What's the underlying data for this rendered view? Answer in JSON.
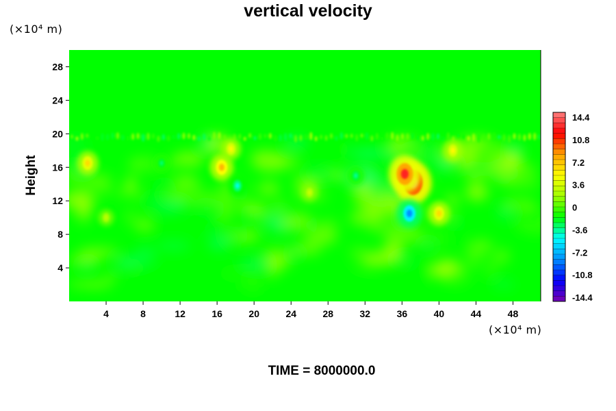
{
  "chart_data": {
    "type": "heatmap",
    "title": "vertical velocity",
    "ylabel": "Height",
    "x_unit": "(×10⁴ m)",
    "y_unit": "(×10⁴ m)",
    "xlim": [
      0,
      51
    ],
    "ylim": [
      0,
      30
    ],
    "x_ticks": [
      "4",
      "8",
      "12",
      "16",
      "20",
      "24",
      "28",
      "32",
      "36",
      "40",
      "44",
      "48"
    ],
    "x_tick_values": [
      4,
      8,
      12,
      16,
      20,
      24,
      28,
      32,
      36,
      40,
      44,
      48
    ],
    "y_ticks": [
      "4",
      "8",
      "12",
      "16",
      "20",
      "24",
      "28"
    ],
    "y_tick_values": [
      4,
      8,
      12,
      16,
      20,
      24,
      28
    ],
    "colorbar": {
      "labels": [
        "14.4",
        "10.8",
        "7.2",
        "3.6",
        "0",
        "-3.6",
        "-7.2",
        "-10.8",
        "-14.4"
      ],
      "values": [
        14.4,
        10.8,
        7.2,
        3.6,
        0,
        -3.6,
        -7.2,
        -10.8,
        -14.4
      ],
      "range": [
        -14.4,
        14.4
      ],
      "colors_low_to_high": [
        "#7a00b0",
        "#0000ff",
        "#0090ff",
        "#00ffff",
        "#00ff00",
        "#a0ff00",
        "#ffff00",
        "#ffa000",
        "#ff0000",
        "#ff8080"
      ]
    },
    "background_value": 0,
    "features": [
      {
        "x": 37.2,
        "y": 14.2,
        "value": 14.4
      },
      {
        "x": 36.3,
        "y": 15.2,
        "value": 12.0
      },
      {
        "x": 16.5,
        "y": 16.0,
        "value": 7.2
      },
      {
        "x": 17.5,
        "y": 18.2,
        "value": 5.0
      },
      {
        "x": 2.0,
        "y": 16.5,
        "value": 6.0
      },
      {
        "x": 40.0,
        "y": 10.5,
        "value": 6.0
      },
      {
        "x": 41.5,
        "y": 18.0,
        "value": 5.0
      },
      {
        "x": 36.8,
        "y": 10.5,
        "value": -8.0
      },
      {
        "x": 18.2,
        "y": 13.8,
        "value": -4.5
      },
      {
        "x": 10.0,
        "y": 16.5,
        "value": -3.0
      },
      {
        "x": 31.0,
        "y": 15.0,
        "value": -3.5
      },
      {
        "x": 26.0,
        "y": 13.0,
        "value": 3.0
      },
      {
        "x": 4.0,
        "y": 10.0,
        "value": 2.5
      }
    ]
  },
  "footer": {
    "time_label": "TIME = 8000000.0"
  },
  "colors": {
    "background_field": "#00ff00",
    "page": "#ffffff"
  }
}
